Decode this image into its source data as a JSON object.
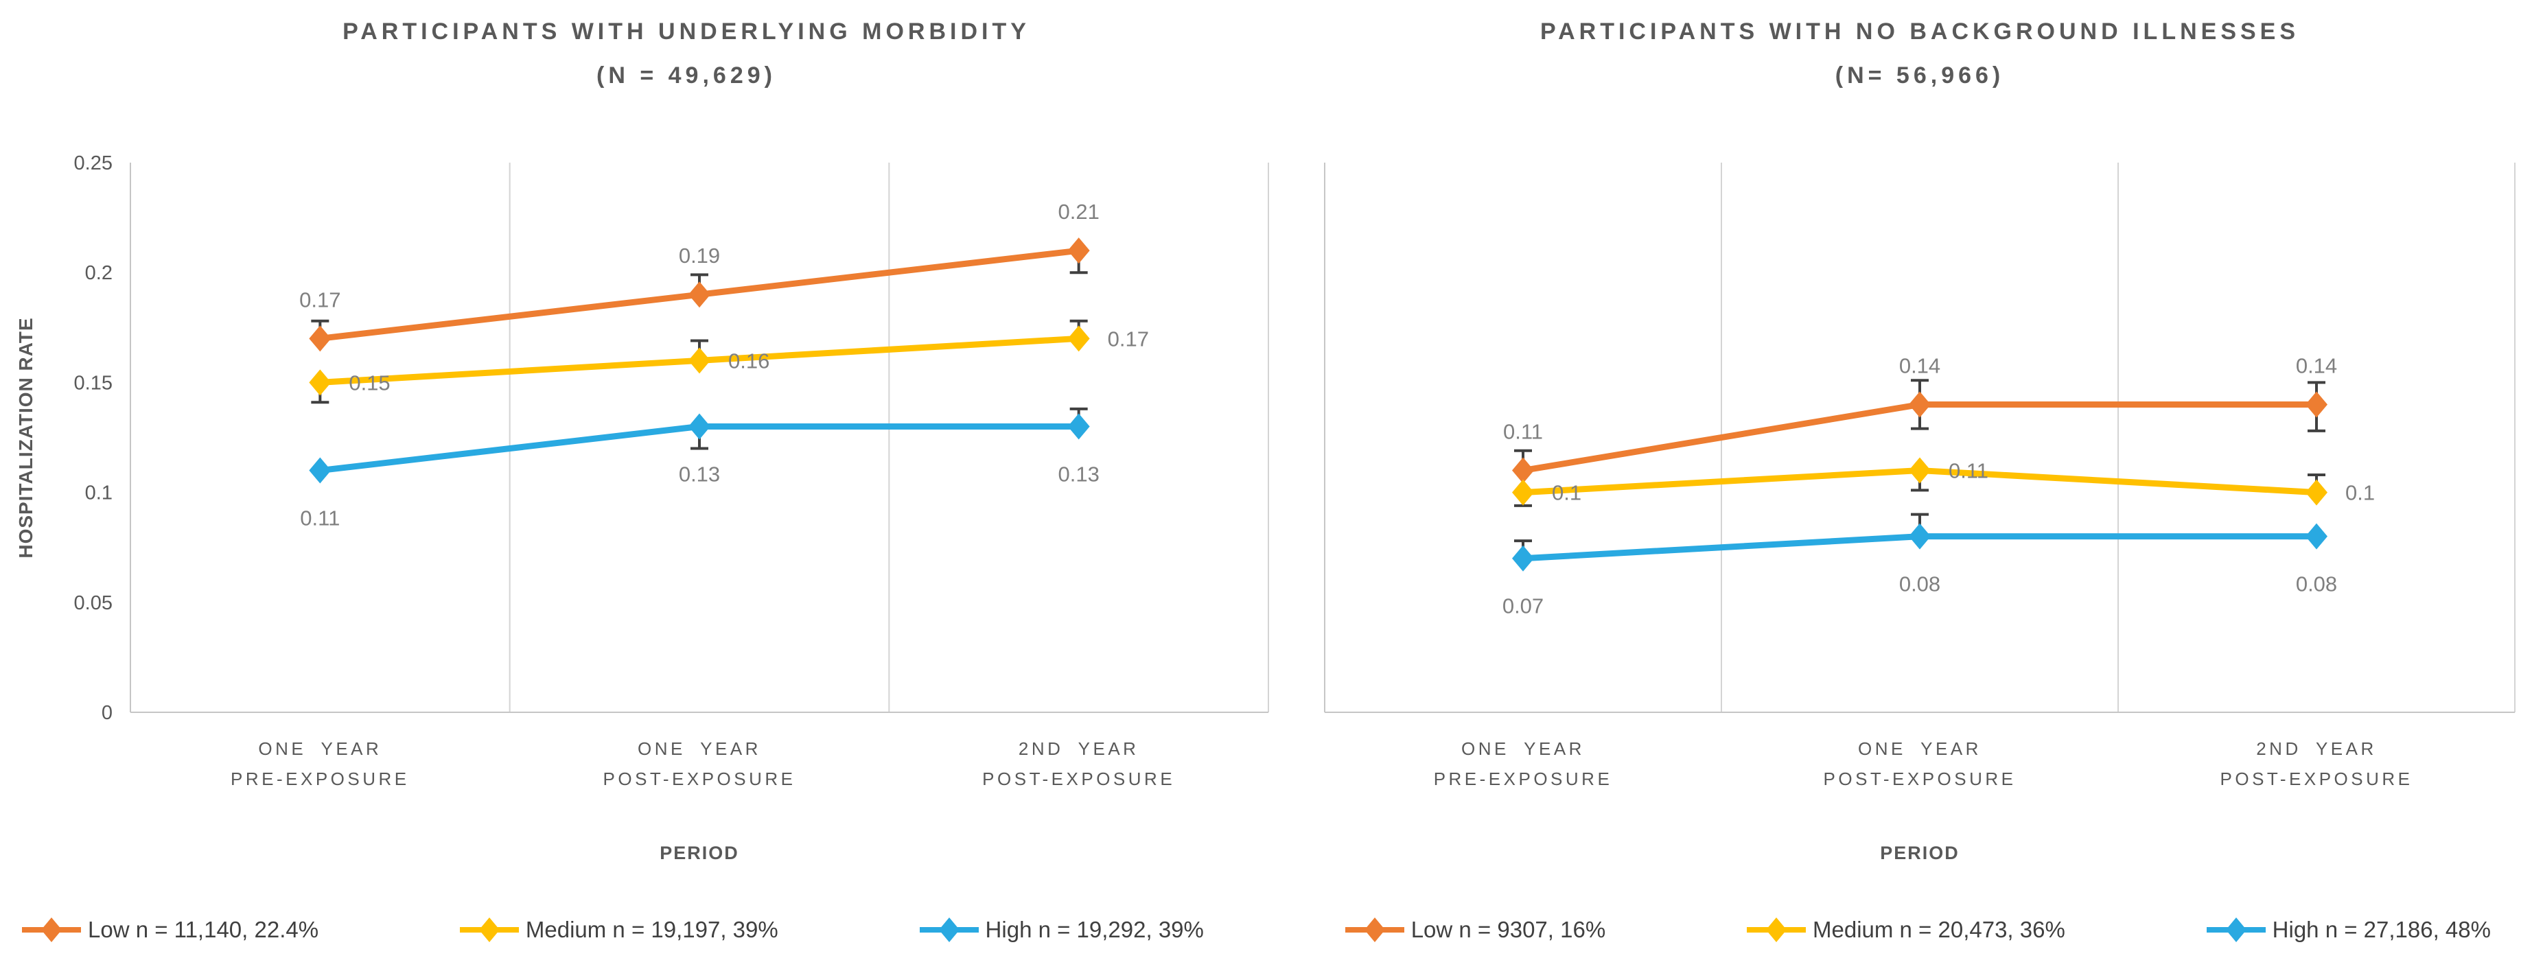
{
  "figure": {
    "background": "#FFFFFF",
    "palette": {
      "low": "#ED7D31",
      "medium": "#FFC000",
      "high": "#29A9E1",
      "gridline": "#D4D4D4",
      "axis_line": "#C6C6C6",
      "error_bar": "#404040",
      "tick_text": "#595959",
      "data_label_text": "#7F7F7F",
      "title_text": "#595959",
      "legend_text": "#3F3F3F"
    }
  },
  "chart_data": [
    {
      "type": "line",
      "title_line1": "PARTICIPANTS WITH UNDERLYING MORBIDITY",
      "title_line2": "(N = 49,629)",
      "xlabel": "PERIOD",
      "ylabel": "HOSPITALIZATION  RATE",
      "ylim": [
        0,
        0.25
      ],
      "yticks": [
        0,
        0.05,
        0.1,
        0.15,
        0.2,
        0.25
      ],
      "ytick_labels": [
        "0",
        "0.05",
        "0.1",
        "0.15",
        "0.2",
        "0.25"
      ],
      "show_ytick_labels": true,
      "grid": "vertical-category-boundaries-only",
      "legend_position": "bottom",
      "categories": [
        [
          "ONE YEAR",
          "PRE-EXPOSURE"
        ],
        [
          "ONE YEAR",
          "POST-EXPOSURE"
        ],
        [
          "2ND YEAR",
          "POST-EXPOSURE"
        ]
      ],
      "series": [
        {
          "name": "Low n = 11,140, 22.4%",
          "color": "#ED7D31",
          "values": [
            0.17,
            0.19,
            0.21
          ],
          "labels": [
            "0.17",
            "0.19",
            "0.21"
          ],
          "label_position": "above",
          "err_up": [
            0.008,
            0.009,
            0
          ],
          "err_down": [
            0,
            0,
            0.01
          ]
        },
        {
          "name": "Medium n = 19,197, 39%",
          "color": "#FFC000",
          "values": [
            0.15,
            0.16,
            0.17
          ],
          "labels": [
            "0.15",
            "0.16",
            "0.17"
          ],
          "label_position": "right",
          "err_up": [
            0,
            0.009,
            0.008
          ],
          "err_down": [
            0.009,
            0,
            0
          ]
        },
        {
          "name": "High n = 19,292, 39%",
          "color": "#29A9E1",
          "values": [
            0.11,
            0.13,
            0.13
          ],
          "labels": [
            "0.11",
            "0.13",
            "0.13"
          ],
          "label_position": "below",
          "err_up": [
            0,
            0,
            0.008
          ],
          "err_down": [
            0,
            0.01,
            0
          ]
        }
      ]
    },
    {
      "type": "line",
      "title_line1": "PARTICIPANTS WITH NO BACKGROUND ILLNESSES",
      "title_line2": "(N= 56,966)",
      "xlabel": "PERIOD",
      "ylabel": "",
      "ylim": [
        0,
        0.25
      ],
      "yticks": [
        0,
        0.05,
        0.1,
        0.15,
        0.2,
        0.25
      ],
      "ytick_labels": [
        "0",
        "0.05",
        "0.1",
        "0.15",
        "0.2",
        "0.25"
      ],
      "show_ytick_labels": false,
      "grid": "vertical-category-boundaries-only",
      "legend_position": "bottom",
      "categories": [
        [
          "ONE YEAR",
          "PRE-EXPOSURE"
        ],
        [
          "ONE YEAR",
          "POST-EXPOSURE"
        ],
        [
          "2ND YEAR",
          "POST-EXPOSURE"
        ]
      ],
      "series": [
        {
          "name": "Low n = 9307, 16%",
          "color": "#ED7D31",
          "values": [
            0.11,
            0.14,
            0.14
          ],
          "labels": [
            "0.11",
            "0.14",
            "0.14"
          ],
          "label_position": "above",
          "err_up": [
            0.009,
            0.011,
            0.01
          ],
          "err_down": [
            0,
            0.011,
            0.012
          ]
        },
        {
          "name": "Medium n = 20,473, 36%",
          "color": "#FFC000",
          "values": [
            0.1,
            0.11,
            0.1
          ],
          "labels": [
            "0.1",
            "0.11",
            "0.1"
          ],
          "label_position": "right",
          "err_up": [
            0,
            0,
            0.008
          ],
          "err_down": [
            0.006,
            0.009,
            0
          ]
        },
        {
          "name": "High n = 27,186, 48%",
          "color": "#29A9E1",
          "values": [
            0.07,
            0.08,
            0.08
          ],
          "labels": [
            "0.07",
            "0.08",
            "0.08"
          ],
          "label_position": "below",
          "err_up": [
            0.008,
            0.01,
            0
          ],
          "err_down": [
            0,
            0,
            0
          ]
        }
      ]
    }
  ],
  "legend": {
    "items": [
      {
        "label": "Low n = 11,140, 22.4%",
        "color": "#ED7D31"
      },
      {
        "label": "Medium n = 19,197, 39%",
        "color": "#FFC000"
      },
      {
        "label": "High n = 19,292, 39%",
        "color": "#29A9E1"
      },
      {
        "label": "Low n = 9307, 16%",
        "color": "#ED7D31"
      },
      {
        "label": "Medium n = 20,473, 36%",
        "color": "#FFC000"
      },
      {
        "label": "High n = 27,186, 48%",
        "color": "#29A9E1"
      }
    ]
  }
}
